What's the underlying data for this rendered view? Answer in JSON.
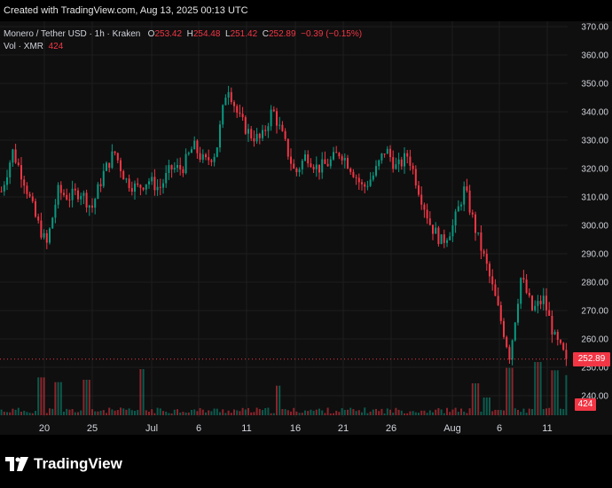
{
  "header": {
    "created_text": "Created with TradingView.com, Aug 13, 2025 00:13 UTC"
  },
  "legend": {
    "symbol": "Monero / Tether USD · 1h · Kraken",
    "o_label": "O",
    "o_value": "253.42",
    "h_label": "H",
    "h_value": "254.48",
    "l_label": "L",
    "l_value": "251.42",
    "c_label": "C",
    "c_value": "252.89",
    "change": "−0.39 (−0.15%)",
    "vol_label": "Vol · XMR",
    "vol_value": "424"
  },
  "colors": {
    "up": "#089981",
    "down": "#f23645",
    "background": "#0f0f0f",
    "grid": "#1e1e1e",
    "axis_text": "#d1d4dc"
  },
  "branding": {
    "logo_text": "TradingView",
    "logo_icon": "tradingview-logo-icon"
  },
  "chart_data": {
    "type": "candlestick",
    "title": "Monero / Tether USD · 1h · Kraken",
    "y_ticks": [
      370,
      360,
      350,
      340,
      330,
      320,
      310,
      300,
      290,
      280,
      270,
      260,
      250,
      240
    ],
    "y_tick_labels": [
      "370.00",
      "360.00",
      "350.00",
      "340.00",
      "330.00",
      "320.00",
      "310.00",
      "300.00",
      "290.00",
      "280.00",
      "270.00",
      "260.00",
      "250.00",
      "240.00"
    ],
    "ylim": [
      234,
      372
    ],
    "x_ticks": [
      "20",
      "25",
      "Jul",
      "6",
      "11",
      "16",
      "21",
      "26",
      "Aug",
      "6",
      "11"
    ],
    "last_price": "252.89",
    "last_volume": "424",
    "series": [
      {
        "name": "price_path",
        "x": [
          0,
          2,
          4,
          6,
          8,
          10,
          12,
          14,
          16,
          18,
          20,
          22,
          24,
          26,
          28,
          30,
          32,
          34,
          36,
          38,
          40,
          42,
          44,
          46,
          48,
          50,
          52,
          54,
          56,
          58,
          60,
          62,
          64,
          66,
          68,
          70,
          72,
          74,
          76,
          78,
          80,
          82,
          84,
          86,
          88,
          90,
          92,
          94,
          96,
          98,
          100
        ],
        "y": [
          312,
          326,
          316,
          303,
          293,
          312,
          310,
          312,
          306,
          318,
          326,
          316,
          313,
          316,
          313,
          320,
          320,
          328,
          322,
          326,
          350,
          338,
          332,
          330,
          341,
          330,
          318,
          325,
          320,
          322,
          326,
          320,
          313,
          318,
          327,
          320,
          325,
          312,
          300,
          294,
          300,
          313,
          298,
          285,
          270,
          254,
          282,
          270,
          274,
          260,
          252.89
        ]
      }
    ],
    "volume": {
      "name": "Vol · XMR",
      "spikes_x": [
        7,
        10,
        15,
        25,
        49,
        84,
        86,
        90,
        95,
        98
      ],
      "spikes_v": [
        3200,
        2800,
        3000,
        3900,
        2500,
        2700,
        1500,
        4000,
        4500,
        3800
      ],
      "baseline_v": 500,
      "last": 424
    }
  }
}
